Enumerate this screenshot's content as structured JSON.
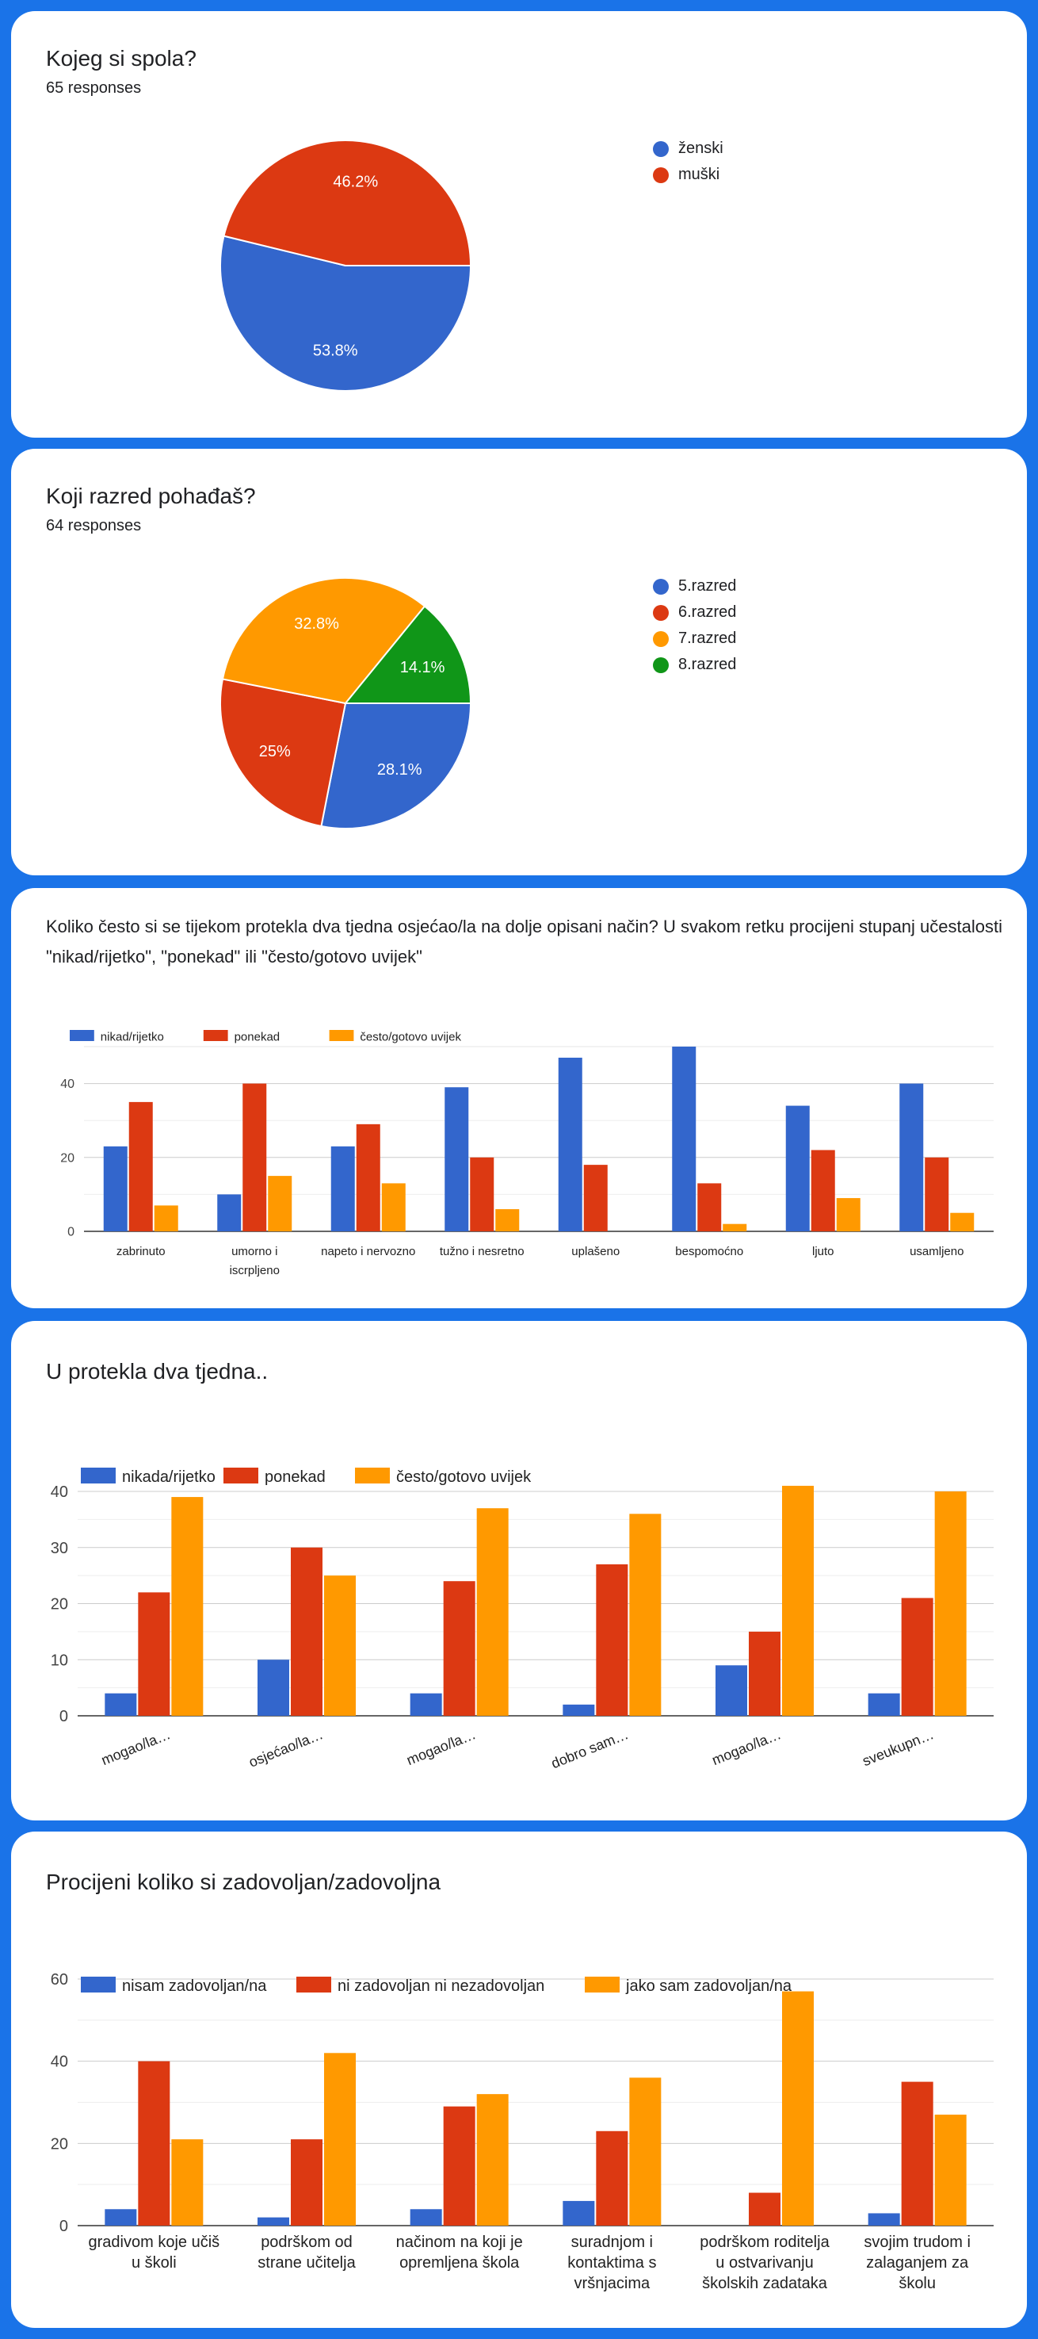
{
  "colors": {
    "blue": "#3366cc",
    "red": "#dc3912",
    "orange": "#ff9900",
    "green": "#109618",
    "background": "#1a73e8"
  },
  "cards": {
    "gender": {
      "title": "Kojeg si spola?",
      "responses": "65 responses"
    },
    "grade": {
      "title": "Koji razred pohađaš?",
      "responses": "64 responses"
    },
    "feelings": {
      "title": "Koliko često si se tijekom protekla dva tjedna osjećao/la na dolje opisani način? U svakom retku procijeni stupanj učestalosti \"nikad/rijetko\", \"ponekad\" ili \"često/gotovo uvijek\""
    },
    "twoweeks": {
      "title": "U protekla dva tjedna.."
    },
    "satisfaction": {
      "title": "Procijeni koliko si zadovoljan/zadovoljna"
    }
  },
  "chart_data": [
    {
      "type": "pie",
      "title": "Kojeg si spola?",
      "labels": [
        "ženski",
        "muški"
      ],
      "values": [
        53.8,
        46.2
      ],
      "value_labels": [
        "53.8%",
        "46.2%"
      ],
      "colors": [
        "#3366cc",
        "#dc3912"
      ],
      "legend": "right"
    },
    {
      "type": "pie",
      "title": "Koji razred pohađaš?",
      "labels": [
        "5.razred",
        "6.razred",
        "7.razred",
        "8.razred"
      ],
      "values": [
        28.1,
        25,
        32.8,
        14.1
      ],
      "value_labels": [
        "28.1%",
        "25%",
        "32.8%",
        "14.1%"
      ],
      "colors": [
        "#3366cc",
        "#dc3912",
        "#ff9900",
        "#109618"
      ],
      "legend": "right"
    },
    {
      "type": "bar",
      "categories": [
        [
          "zabrinuto"
        ],
        [
          "umorno i",
          "iscrpljeno"
        ],
        [
          "napeto i nervozno"
        ],
        [
          "tužno i nesretno"
        ],
        [
          "uplašeno"
        ],
        [
          "bespomoćno"
        ],
        [
          "ljuto"
        ],
        [
          "usamljeno"
        ]
      ],
      "series": [
        {
          "name": "nikad/rijetko",
          "values": [
            23,
            10,
            23,
            39,
            47,
            50,
            34,
            40
          ]
        },
        {
          "name": "ponekad",
          "values": [
            35,
            40,
            29,
            20,
            18,
            13,
            22,
            20
          ]
        },
        {
          "name": "često/gotovo uvijek",
          "values": [
            7,
            15,
            13,
            6,
            0,
            2,
            9,
            5
          ]
        }
      ],
      "yticks": [
        0,
        20,
        40
      ],
      "ylim": [
        0,
        50
      ],
      "grid": true,
      "legend": "top-left"
    },
    {
      "type": "bar",
      "categories": [
        [
          "mogao/la…"
        ],
        [
          "osjećao/la…"
        ],
        [
          "mogao/la…"
        ],
        [
          "dobro sam…"
        ],
        [
          "mogao/la…"
        ],
        [
          "sveukupn…"
        ]
      ],
      "series": [
        {
          "name": "nikada/rijetko",
          "values": [
            4,
            10,
            4,
            2,
            9,
            4
          ]
        },
        {
          "name": "ponekad",
          "values": [
            22,
            30,
            24,
            27,
            15,
            21
          ]
        },
        {
          "name": "često/gotovo uvijek",
          "values": [
            39,
            25,
            37,
            36,
            41,
            40
          ]
        }
      ],
      "yticks": [
        0,
        10,
        20,
        30,
        40
      ],
      "ylim": [
        0,
        40
      ],
      "grid": true,
      "legend": "top-left"
    },
    {
      "type": "bar",
      "categories": [
        [
          "gradivom koje učiš",
          "u školi"
        ],
        [
          "podrškom od",
          "strane učitelja"
        ],
        [
          "načinom na koji je",
          "opremljena škola"
        ],
        [
          "suradnjom i",
          "kontaktima s",
          "vršnjacima"
        ],
        [
          "podrškom roditelja",
          "u ostvarivanju",
          "školskih zadataka"
        ],
        [
          "svojim trudom i",
          "zalaganjem za",
          "školu"
        ]
      ],
      "series": [
        {
          "name": "nisam zadovoljan/na",
          "values": [
            4,
            2,
            4,
            6,
            0,
            3
          ]
        },
        {
          "name": "ni zadovoljan ni nezadovoljan",
          "values": [
            40,
            21,
            29,
            23,
            8,
            35
          ]
        },
        {
          "name": "jako sam zadovoljan/na",
          "values": [
            21,
            42,
            32,
            36,
            57,
            27
          ]
        }
      ],
      "yticks": [
        0,
        20,
        40,
        60
      ],
      "ylim": [
        0,
        60
      ],
      "grid": true,
      "legend": "top-left"
    }
  ]
}
